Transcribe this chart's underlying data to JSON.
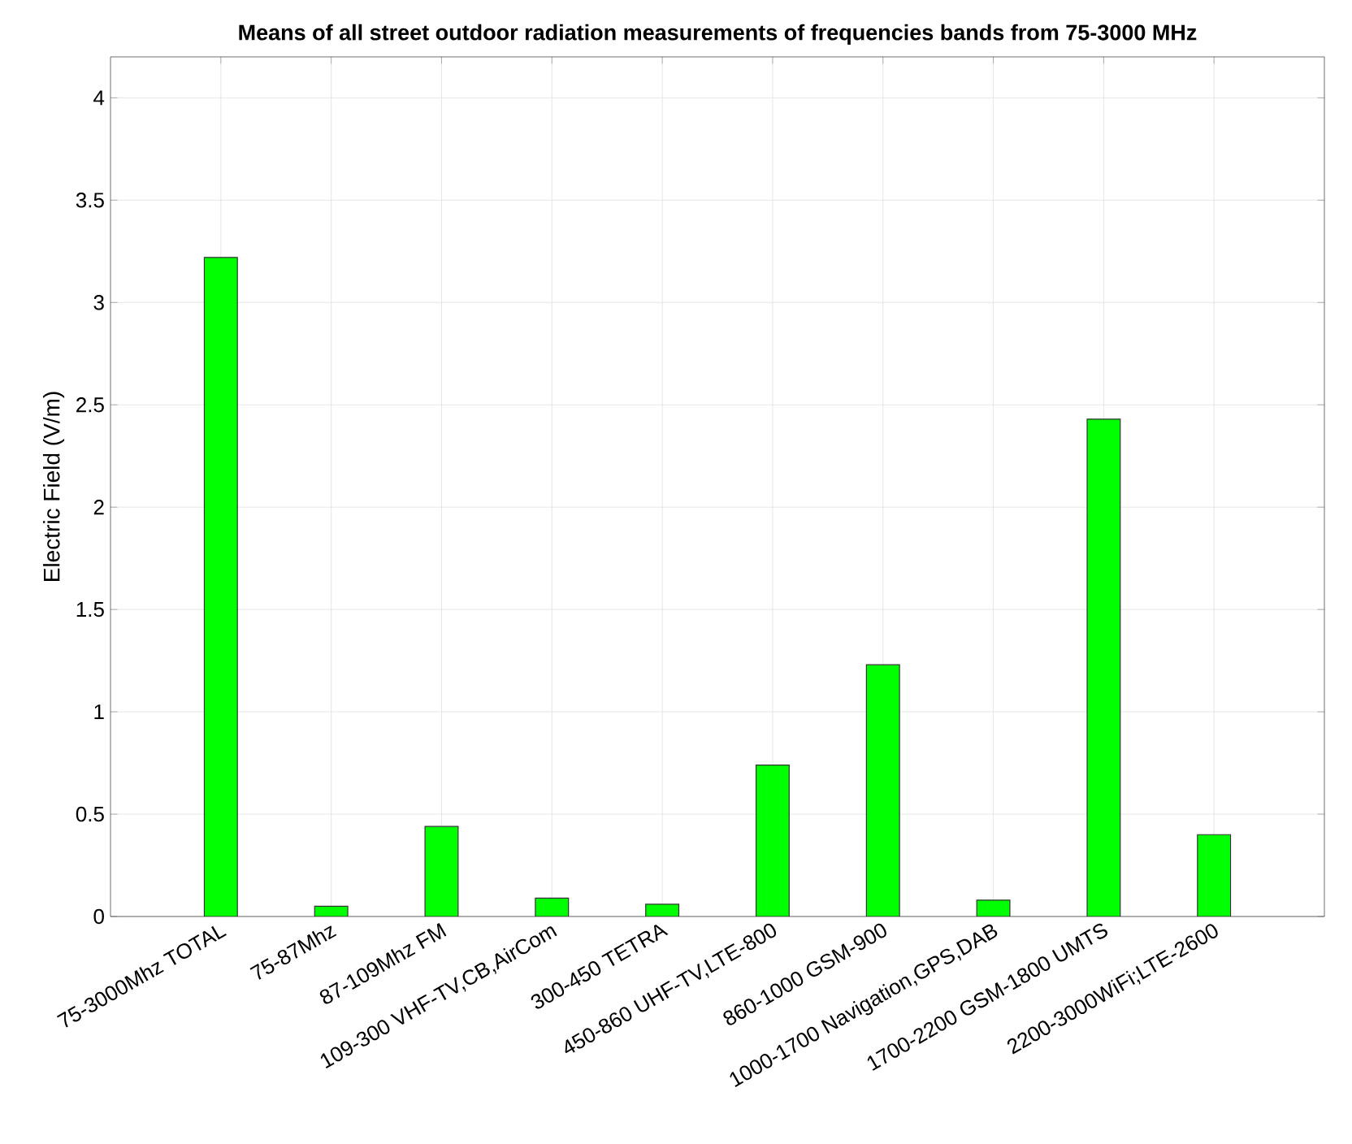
{
  "chart_data": {
    "type": "bar",
    "title": "Means of all street outdoor radiation measurements of frequencies bands from 75-3000 MHz",
    "ylabel": "Electric Field (V/m)",
    "categories": [
      "75-3000Mhz TOTAL",
      "75-87Mhz",
      "87-109Mhz FM",
      "109-300 VHF-TV,CB,AirCom",
      "300-450 TETRA",
      "450-860 UHF-TV,LTE-800",
      "860-1000 GSM-900",
      "1000-1700 Navigation,GPS,DAB",
      "1700-2200 GSM-1800 UMTS",
      "2200-3000WiFi;LTE-2600"
    ],
    "values": [
      3.22,
      0.05,
      0.44,
      0.09,
      0.06,
      0.74,
      1.23,
      0.08,
      2.43,
      0.4
    ],
    "color": "#00ff00",
    "ylim": [
      0,
      4.2
    ],
    "yticks": [
      0,
      0.5,
      1,
      1.5,
      2,
      2.5,
      3,
      3.5,
      4
    ],
    "grid": true
  }
}
